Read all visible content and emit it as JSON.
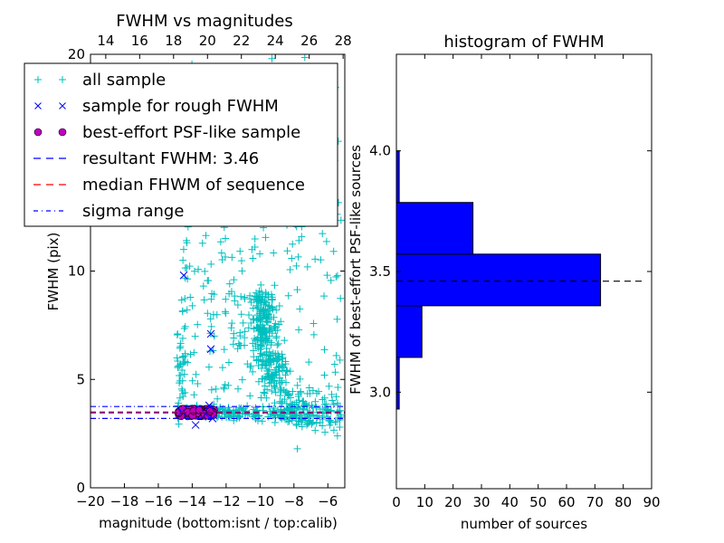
{
  "chart_data": [
    {
      "type": "scatter",
      "title": "FWHM vs magnitudes",
      "xlabel": "magnitude (bottom:isnt / top:calib)",
      "ylabel": "FWHM (pix)",
      "xlim": [
        -20,
        -5
      ],
      "ylim": [
        0,
        20
      ],
      "x_ticks": [
        -20,
        -18,
        -16,
        -14,
        -12,
        -10,
        -8,
        -6
      ],
      "x_tick_labels": [
        "−20",
        "−18",
        "−16",
        "−14",
        "−12",
        "−10",
        "−8",
        "−6"
      ],
      "y_ticks": [
        0,
        5,
        10,
        20
      ],
      "y_tick_labels": [
        "0",
        "5",
        "10",
        "20"
      ],
      "top_axis": {
        "offset": 33.1,
        "ticks": [
          14,
          16,
          18,
          20,
          22,
          24,
          26,
          28
        ],
        "tick_labels": [
          "14",
          "16",
          "18",
          "20",
          "22",
          "24",
          "26",
          "28"
        ]
      },
      "grid": false,
      "legend": {
        "placement": "upper-left",
        "entries": [
          {
            "label": "all sample",
            "marker": "plus",
            "color": "#00bfbf"
          },
          {
            "label": "sample for rough FWHM",
            "marker": "x",
            "color": "#0000ff"
          },
          {
            "label": "best-effort PSF-like sample",
            "marker": "circle",
            "color": "#bf00bf"
          },
          {
            "label": "resultant FWHM: 3.46",
            "marker": "dashed",
            "color": "#0000ff"
          },
          {
            "label": "median FHWM of sequence",
            "marker": "dashed",
            "color": "#ff0000"
          },
          {
            "label": "sigma range",
            "marker": "dashdot",
            "color": "#0000ff"
          }
        ]
      },
      "series": [
        {
          "name": "all sample",
          "color": "#00bfbf",
          "description_clusters": [
            {
              "x_range": [
                -14.9,
                -5.2
              ],
              "y_center": 3.46,
              "y_spread": 0.15,
              "count": 260
            },
            {
              "x_range": [
                -10.2,
                -7.5
              ],
              "y_center": 6.5,
              "y_spread": 2.2,
              "count": 330
            },
            {
              "x_range": [
                -14.8,
                -10.5
              ],
              "y_center": 8.5,
              "y_spread": 3.5,
              "count": 120
            },
            {
              "x_range": [
                -10.5,
                -5.2
              ],
              "y_center": 10.5,
              "y_spread": 5.0,
              "count": 120
            },
            {
              "x_range": [
                -14.9,
                -14.4
              ],
              "y_center": 5.5,
              "y_spread": 2.0,
              "count": 30
            }
          ]
        },
        {
          "name": "sample for rough FWHM",
          "color": "#0000ff",
          "points": [
            [
              -14.5,
              9.8
            ],
            [
              -13.9,
              12.6
            ],
            [
              -13.4,
              12.3
            ],
            [
              -12.9,
              7.1
            ],
            [
              -12.9,
              6.4
            ],
            [
              -13.8,
              2.9
            ],
            [
              -13.0,
              3.8
            ],
            [
              -12.8,
              3.2
            ],
            [
              -14.6,
              3.5
            ],
            [
              -13.2,
              3.4
            ]
          ]
        },
        {
          "name": "best-effort PSF-like sample",
          "color": "#bf00bf",
          "x_range": [
            -14.8,
            -12.7
          ],
          "y_range": [
            3.3,
            3.65
          ]
        }
      ],
      "hlines": [
        {
          "name": "resultant FWHM",
          "value": 3.46,
          "style": "dashed",
          "color": "#0000ff"
        },
        {
          "name": "median FHWM of sequence",
          "value": 3.5,
          "style": "dashed",
          "color": "#ff0000"
        },
        {
          "name": "sigma range upper",
          "value": 3.75,
          "style": "dashdot",
          "color": "#0000ff"
        },
        {
          "name": "sigma range lower",
          "value": 3.2,
          "style": "dashdot",
          "color": "#0000ff"
        }
      ]
    },
    {
      "type": "bar",
      "orientation": "horizontal",
      "title": "histogram of FWHM",
      "xlabel": "number of sources",
      "ylabel": "FWHM of best-effort PSF-like sources",
      "xlim": [
        0,
        90
      ],
      "ylim": [
        2.6,
        4.4
      ],
      "x_ticks": [
        0,
        10,
        20,
        30,
        40,
        50,
        60,
        70,
        80,
        90
      ],
      "x_tick_labels": [
        "0",
        "10",
        "20",
        "30",
        "40",
        "50",
        "60",
        "70",
        "80",
        "90"
      ],
      "y_ticks": [
        3.0,
        3.5,
        4.0
      ],
      "y_tick_labels": [
        "3.0",
        "3.5",
        "4.0"
      ],
      "bar_color": "#0000ff",
      "bins": [
        {
          "low": 2.93,
          "high": 3.144,
          "count": 1
        },
        {
          "low": 3.144,
          "high": 3.358,
          "count": 9
        },
        {
          "low": 3.358,
          "high": 3.572,
          "count": 72
        },
        {
          "low": 3.572,
          "high": 3.786,
          "count": 27
        },
        {
          "low": 3.786,
          "high": 4.0,
          "count": 1
        }
      ],
      "hline": {
        "value": 3.46,
        "style": "dashed",
        "color": "#000000",
        "x_extent": [
          0,
          87
        ]
      }
    }
  ]
}
